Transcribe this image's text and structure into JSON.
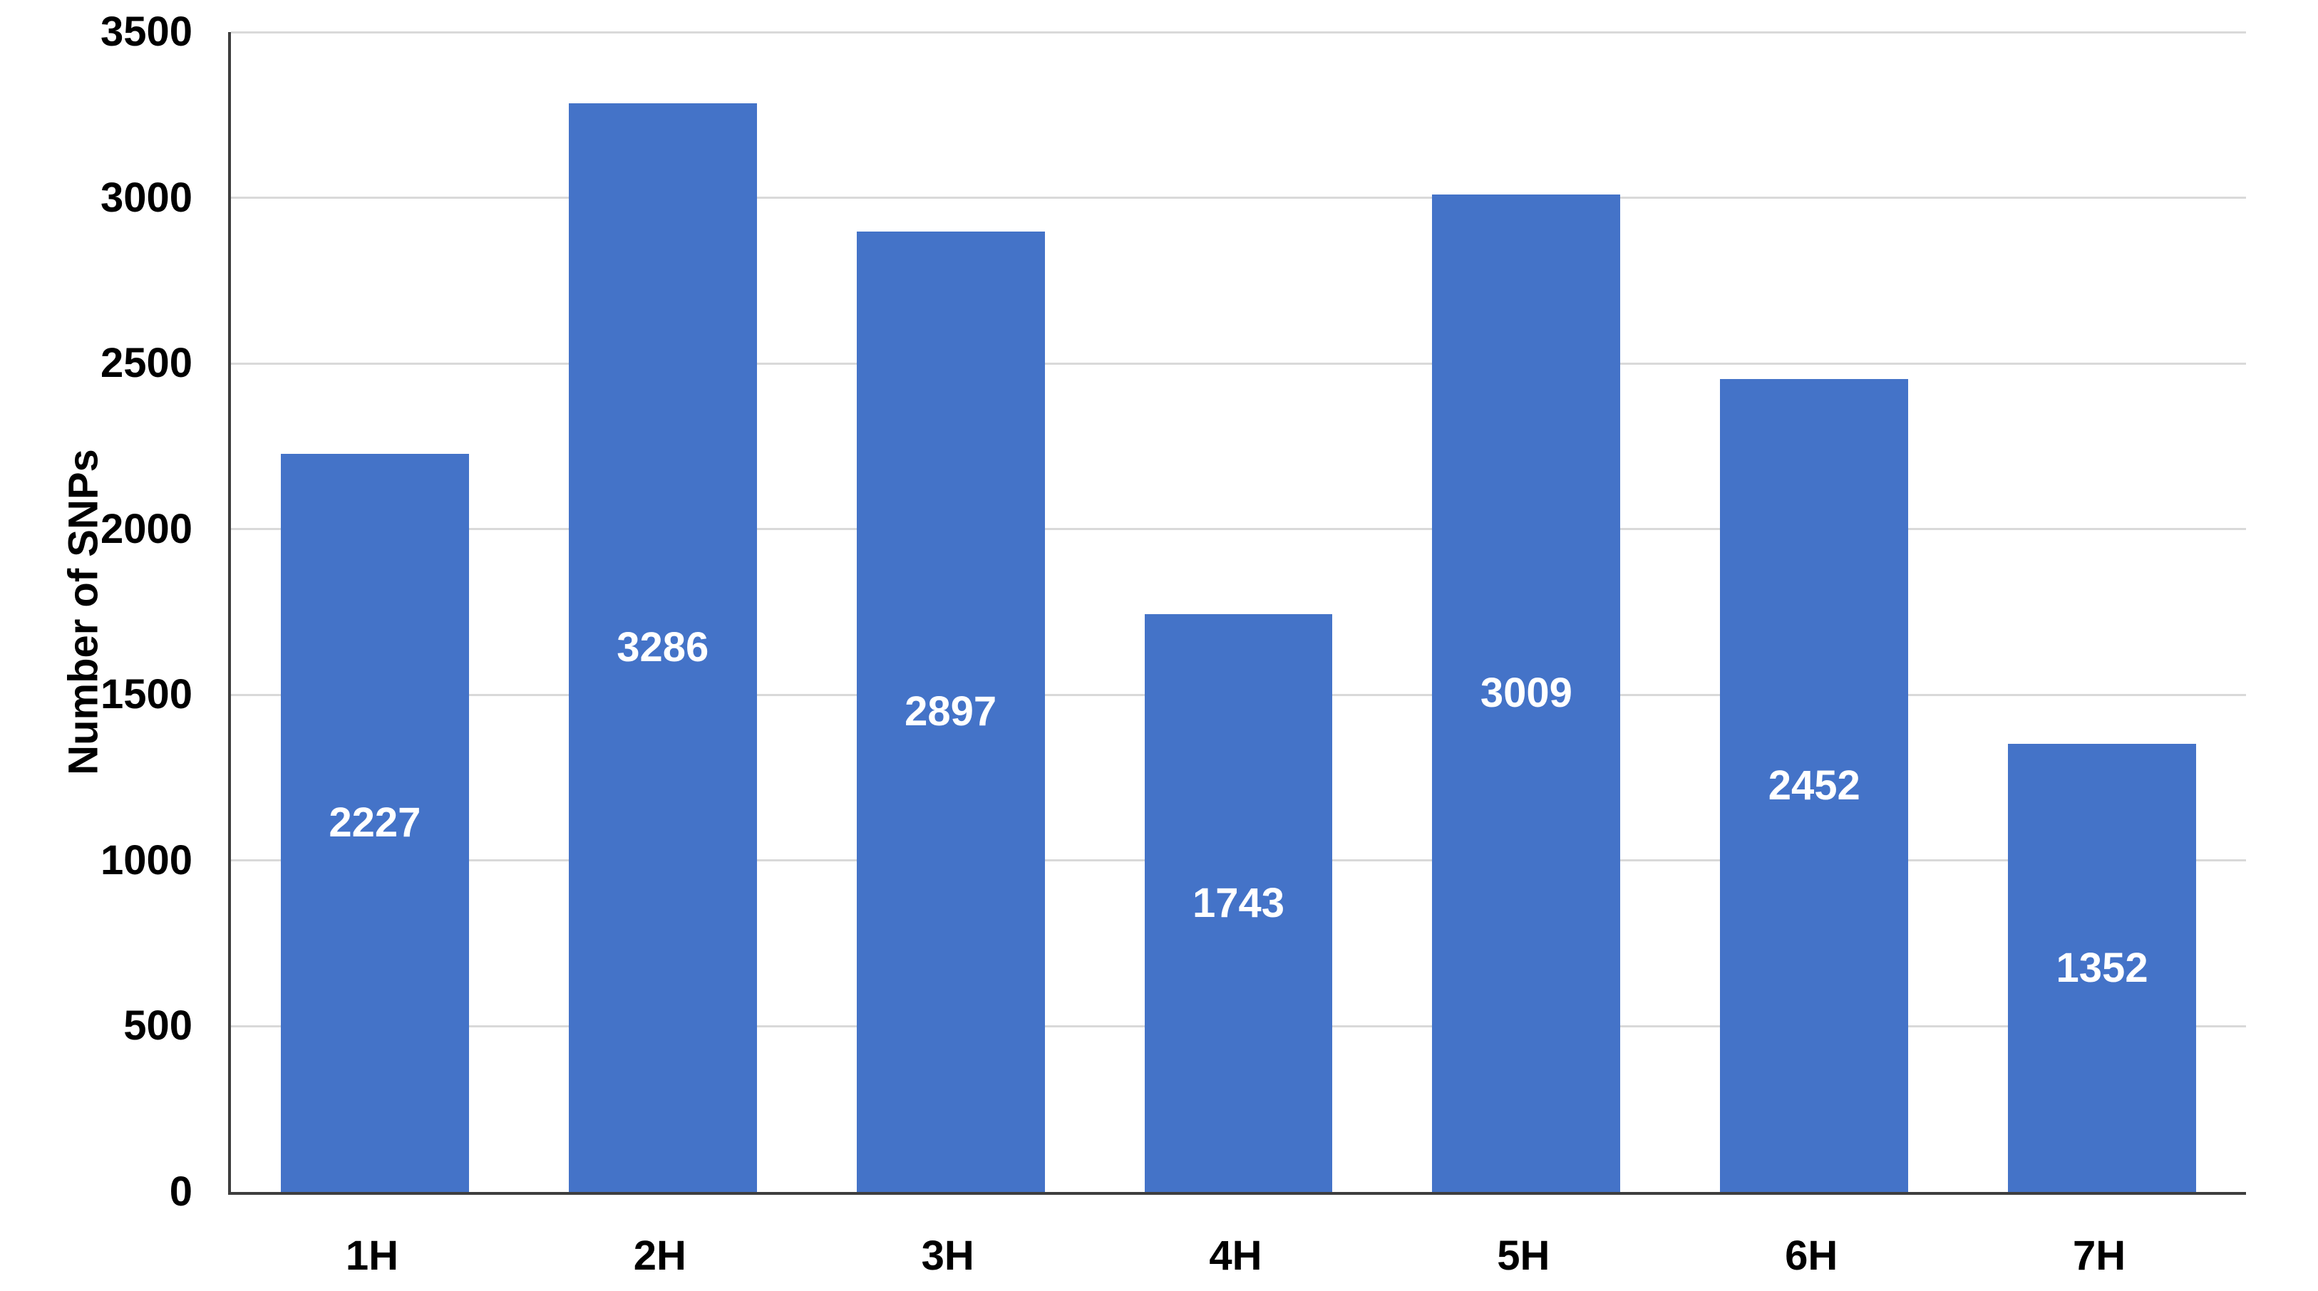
{
  "chart_data": {
    "type": "bar",
    "title": "",
    "ylabel": "Number of SNPs",
    "xlabel": "",
    "categories": [
      "1H",
      "2H",
      "3H",
      "4H",
      "5H",
      "6H",
      "7H"
    ],
    "values": [
      2227,
      3286,
      2897,
      1743,
      3009,
      2452,
      1352
    ],
    "yticks": [
      0,
      500,
      1000,
      1500,
      2000,
      2500,
      3000,
      3500
    ],
    "ylim": [
      0,
      3500
    ],
    "grid": "horizontal",
    "legend_position": "none",
    "bar_labels_position": "center-of-bar",
    "colors": {
      "bar": "#4473C8",
      "bar_label": "#FFFFFF",
      "grid": "#D9D9D9",
      "axis": "#3E3E3E",
      "tick_label": "#000000",
      "background": "#FFFFFF"
    }
  }
}
